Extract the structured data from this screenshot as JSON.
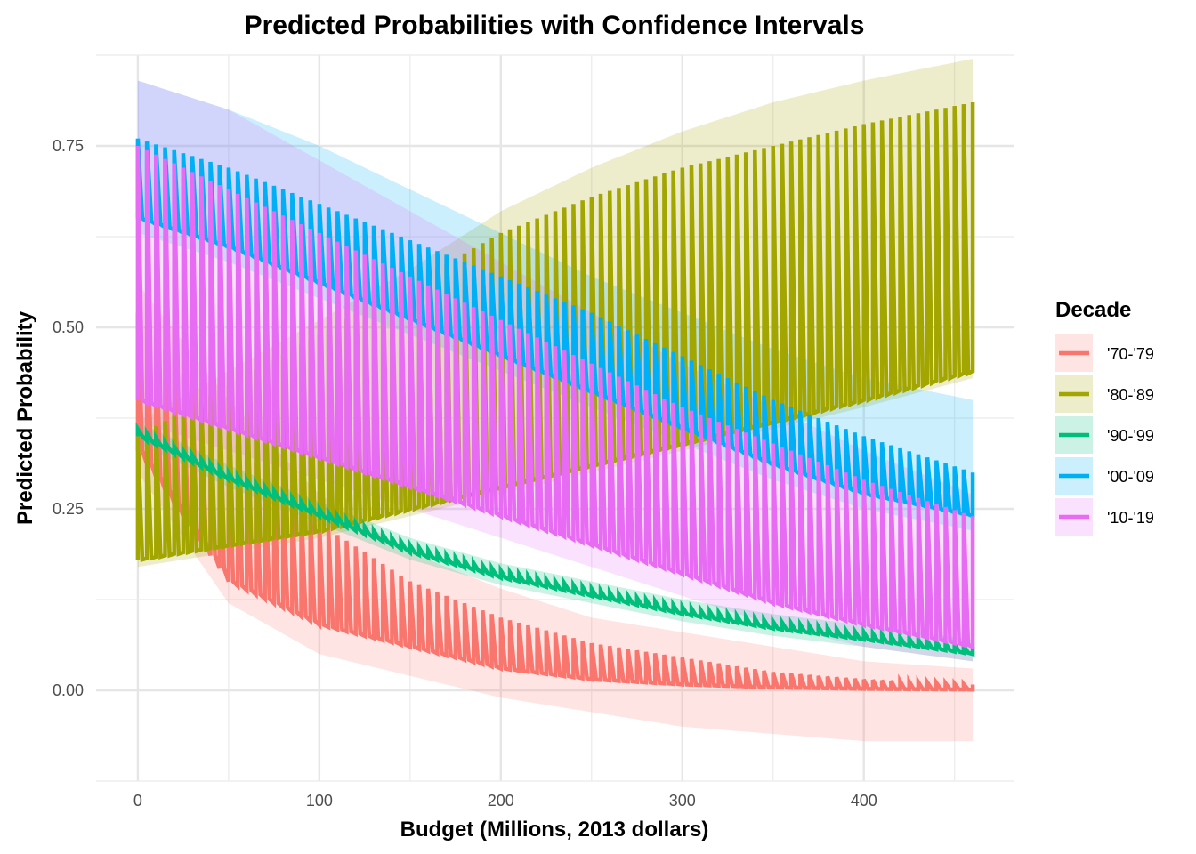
{
  "chart_data": {
    "type": "line",
    "title": "Predicted Probabilities with Confidence Intervals",
    "xlabel": "Budget (Millions, 2013 dollars)",
    "ylabel": "Predicted Probability",
    "xlim": [
      -23,
      483
    ],
    "ylim": [
      -0.125,
      0.875
    ],
    "x_ticks": [
      0,
      100,
      200,
      300,
      400
    ],
    "y_ticks": [
      0.0,
      0.25,
      0.5,
      0.75
    ],
    "x_tick_labels": [
      "0",
      "100",
      "200",
      "300",
      "400"
    ],
    "y_tick_labels": [
      "0.00",
      "0.25",
      "0.50",
      "0.75"
    ],
    "grid": true,
    "legend": {
      "title": "Decade",
      "position": "right"
    },
    "x": [
      0,
      50,
      100,
      150,
      200,
      250,
      300,
      350,
      400,
      460
    ],
    "series": [
      {
        "name": "'70-'79",
        "color": "#F8766D",
        "lower": [
          0.33,
          0.15,
          0.09,
          0.06,
          0.03,
          0.015,
          0.008,
          0.004,
          0.002,
          0.001
        ],
        "upper": [
          0.52,
          0.35,
          0.23,
          0.15,
          0.1,
          0.065,
          0.045,
          0.025,
          0.015,
          0.008
        ],
        "ci_lower": [
          0.3,
          0.12,
          0.05,
          0.02,
          -0.01,
          -0.03,
          -0.05,
          -0.06,
          -0.07,
          -0.07
        ],
        "ci_upper": [
          0.56,
          0.4,
          0.27,
          0.19,
          0.14,
          0.1,
          0.08,
          0.06,
          0.04,
          0.03
        ]
      },
      {
        "name": "'80-'89",
        "color": "#A3A500",
        "lower": [
          0.18,
          0.2,
          0.22,
          0.25,
          0.28,
          0.31,
          0.34,
          0.37,
          0.4,
          0.44
        ],
        "upper": [
          0.35,
          0.42,
          0.49,
          0.56,
          0.63,
          0.68,
          0.72,
          0.75,
          0.78,
          0.81
        ],
        "ci_lower": [
          0.17,
          0.19,
          0.21,
          0.24,
          0.27,
          0.3,
          0.33,
          0.36,
          0.39,
          0.43
        ],
        "ci_upper": [
          0.37,
          0.44,
          0.51,
          0.58,
          0.66,
          0.72,
          0.77,
          0.81,
          0.84,
          0.87
        ]
      },
      {
        "name": "'90-'99",
        "color": "#00BF7D",
        "lower": [
          0.35,
          0.29,
          0.24,
          0.19,
          0.155,
          0.13,
          0.105,
          0.085,
          0.07,
          0.05
        ],
        "upper": [
          0.36,
          0.3,
          0.25,
          0.2,
          0.165,
          0.14,
          0.115,
          0.095,
          0.08,
          0.06
        ],
        "ci_lower": [
          0.34,
          0.28,
          0.23,
          0.18,
          0.145,
          0.12,
          0.095,
          0.075,
          0.06,
          0.04
        ],
        "ci_upper": [
          0.37,
          0.31,
          0.26,
          0.21,
          0.175,
          0.15,
          0.125,
          0.105,
          0.09,
          0.07
        ]
      },
      {
        "name": "'00-'09",
        "color": "#00B0F6",
        "lower": [
          0.65,
          0.61,
          0.56,
          0.51,
          0.46,
          0.41,
          0.36,
          0.31,
          0.27,
          0.24
        ],
        "upper": [
          0.76,
          0.72,
          0.67,
          0.62,
          0.57,
          0.52,
          0.46,
          0.4,
          0.35,
          0.3
        ],
        "ci_lower": [
          0.63,
          0.59,
          0.54,
          0.49,
          0.44,
          0.39,
          0.34,
          0.29,
          0.25,
          0.22
        ],
        "ci_upper": [
          0.84,
          0.8,
          0.75,
          0.69,
          0.63,
          0.57,
          0.52,
          0.47,
          0.43,
          0.4
        ]
      },
      {
        "name": "'10-'19",
        "color": "#E76BF3",
        "lower": [
          0.4,
          0.36,
          0.32,
          0.28,
          0.24,
          0.2,
          0.16,
          0.12,
          0.09,
          0.06
        ],
        "upper": [
          0.75,
          0.69,
          0.63,
          0.57,
          0.51,
          0.45,
          0.39,
          0.34,
          0.29,
          0.24
        ],
        "ci_lower": [
          0.37,
          0.33,
          0.29,
          0.25,
          0.21,
          0.17,
          0.13,
          0.09,
          0.06,
          0.04
        ],
        "ci_upper": [
          0.84,
          0.8,
          0.73,
          0.66,
          0.59,
          0.52,
          0.45,
          0.39,
          0.33,
          0.27
        ]
      }
    ]
  }
}
